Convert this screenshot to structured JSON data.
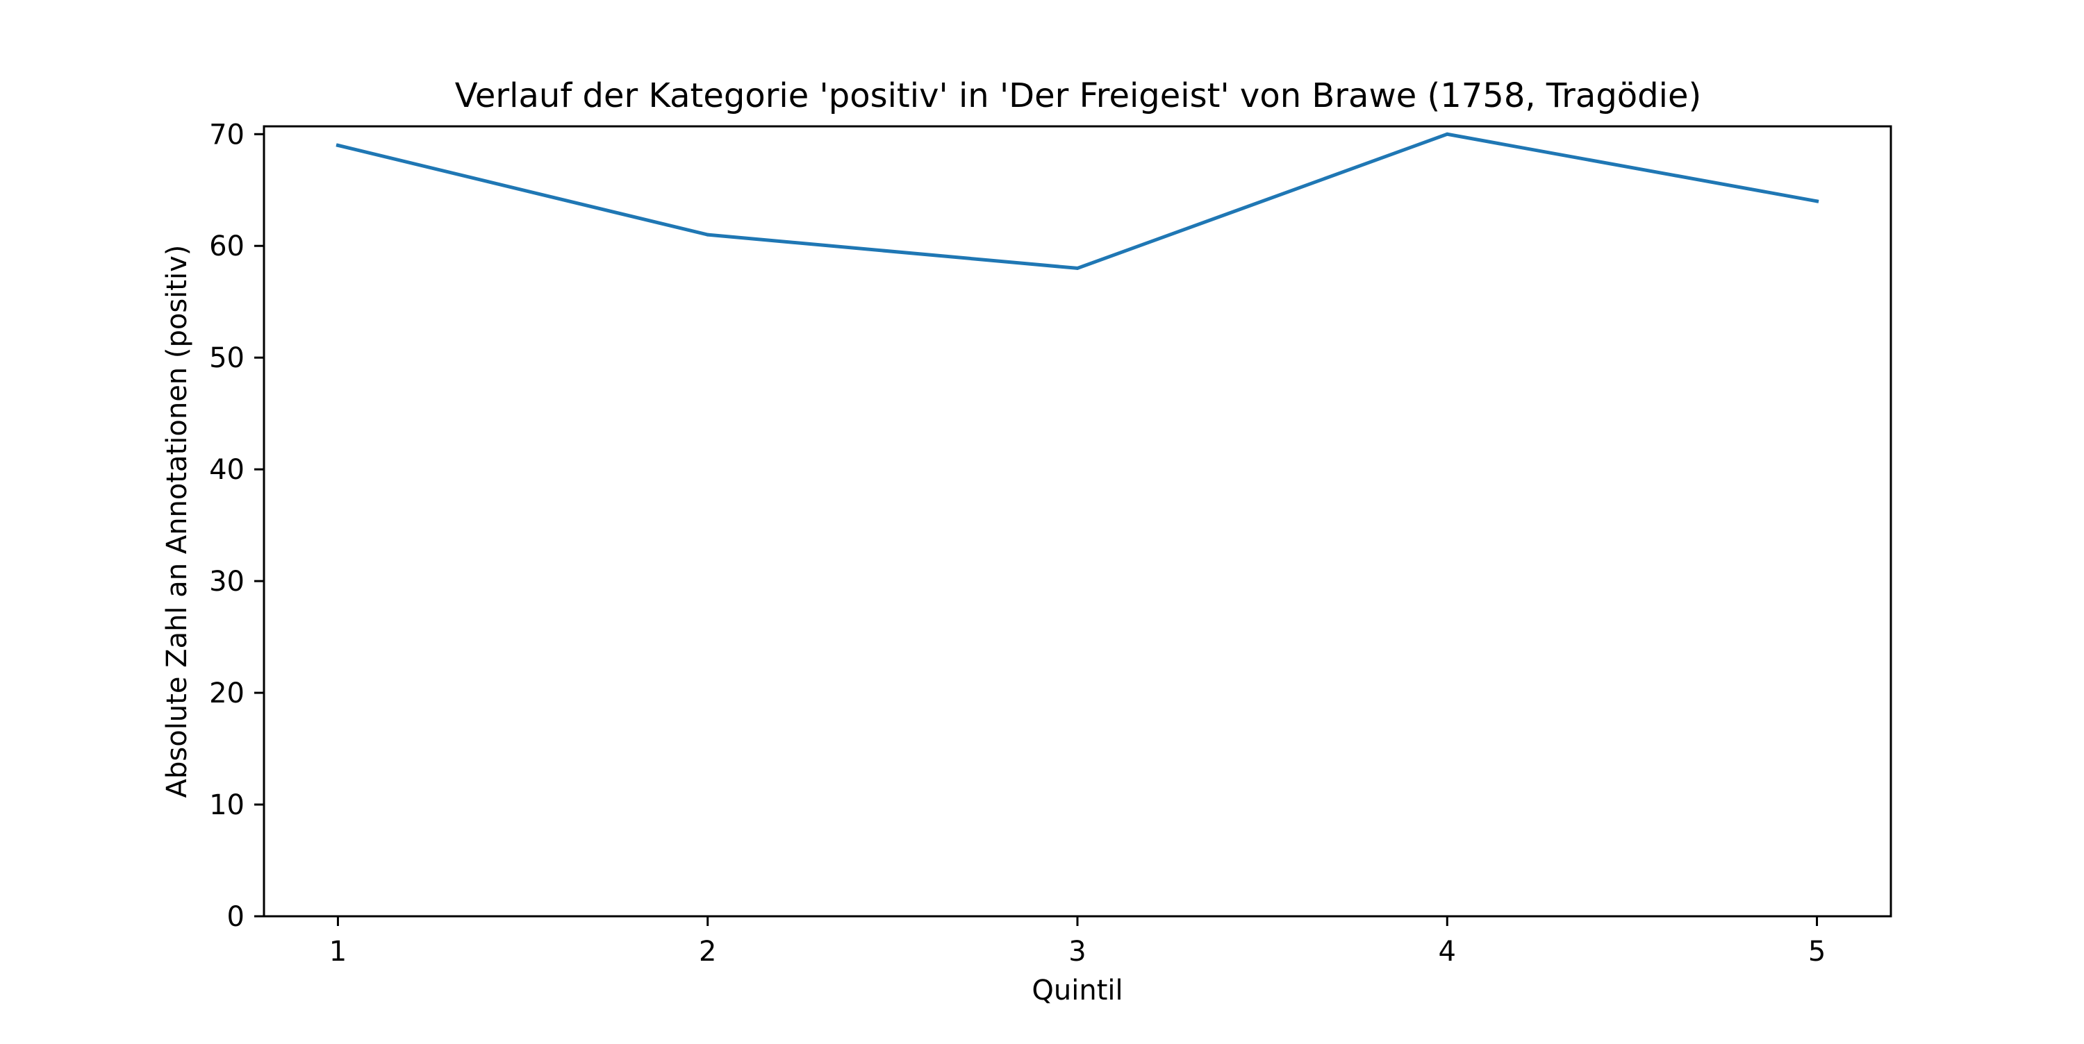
{
  "chart_data": {
    "type": "line",
    "title": "Verlauf der Kategorie 'positiv' in 'Der Freigeist' von Brawe (1758, Tragödie)",
    "xlabel": "Quintil",
    "ylabel": "Absolute Zahl an Annotationen (positiv)",
    "x": [
      1,
      2,
      3,
      4,
      5
    ],
    "x_tick_labels": [
      "1",
      "2",
      "3",
      "4",
      "5"
    ],
    "y_ticks": [
      0,
      10,
      20,
      30,
      40,
      50,
      60,
      70
    ],
    "y_tick_labels": [
      "0",
      "10",
      "20",
      "30",
      "40",
      "50",
      "60",
      "70"
    ],
    "xlim": [
      0.8,
      5.2
    ],
    "ylim": [
      0,
      70.7
    ],
    "grid": false,
    "series": [
      {
        "color": "#1f77b4",
        "values": [
          69,
          61,
          58,
          70,
          64
        ]
      }
    ]
  }
}
